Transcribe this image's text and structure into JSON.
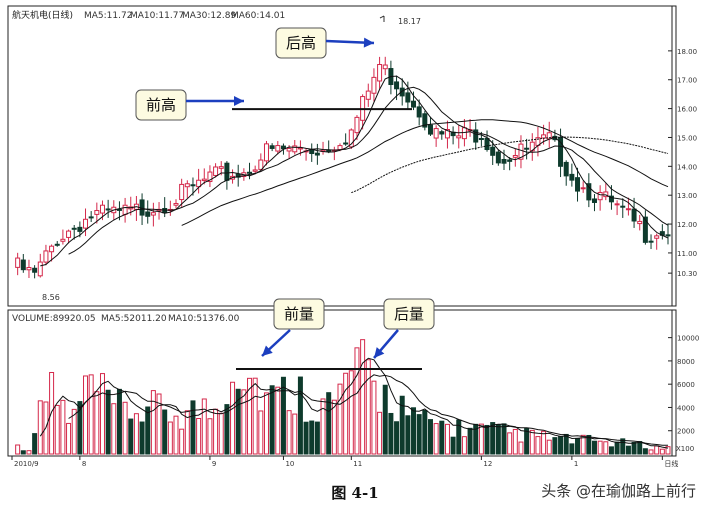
{
  "figure_caption": "图 4-1",
  "watermark": "头条 @在瑜伽路上前行",
  "chart_data": [
    {
      "type": "candlestick",
      "title_parts": {
        "name": "航天机电(日线)",
        "ma5": "MA5:11.72",
        "ma10": "MA10:11.77",
        "ma30": "MA30:12.89",
        "ma60": "MA60:14.01"
      },
      "y_ticks": [
        "18.00",
        "17.00",
        "16.00",
        "15.00",
        "14.00",
        "13.00",
        "12.00",
        "11.00",
        "10.30"
      ],
      "y_tick_values": [
        18,
        17,
        16,
        15,
        14,
        13,
        12,
        11,
        10.3
      ],
      "ylim": [
        9.3,
        19.0
      ],
      "high_label": "18.17",
      "low_label": "8.56",
      "colors": {
        "up": "#d4284a",
        "down": "#0e3b2d",
        "ma": "#111111",
        "annotation": "#1c3fbf",
        "callout_bg": "#fdfbe1"
      },
      "annotations": [
        {
          "label": "前高",
          "level": 15.98
        },
        {
          "label": "后高",
          "target_value": 18.1
        }
      ],
      "close_path_x": [
        0,
        4,
        8,
        14,
        21,
        28,
        35,
        41,
        45,
        50,
        55,
        60,
        63,
        65,
        68,
        72,
        75,
        78,
        83,
        86,
        89,
        95,
        100,
        105,
        109,
        112,
        115
      ],
      "close_path_y": [
        10.6,
        10.2,
        11.5,
        12.3,
        12.4,
        12.8,
        13.6,
        13.8,
        14.5,
        14.6,
        14.6,
        15.2,
        16.6,
        17.5,
        16.9,
        16.0,
        15.1,
        15.0,
        15.2,
        14.3,
        14.4,
        14.9,
        13.4,
        12.8,
        12.2,
        11.7,
        11.8
      ]
    },
    {
      "type": "bar",
      "title_parts": {
        "volume": "VOLUME:89920.05",
        "ma5": "MA5:52011.20",
        "ma10": "MA10:51376.00"
      },
      "y_ticks": [
        "10000",
        "8000",
        "6000",
        "4000",
        "2000"
      ],
      "y_tick_values": [
        10000,
        8000,
        6000,
        4000,
        2000
      ],
      "ylim": [
        0,
        11000
      ],
      "unit": "X100",
      "annotations": [
        {
          "label": "前量",
          "level": 7300
        },
        {
          "label": "后量",
          "level": 7300
        }
      ],
      "volume_path": [
        [
          0,
          700
        ],
        [
          3,
          400
        ],
        [
          7,
          6200
        ],
        [
          10,
          2500
        ],
        [
          14,
          5900
        ],
        [
          17,
          4200
        ],
        [
          20,
          3700
        ],
        [
          25,
          3800
        ],
        [
          30,
          3500
        ],
        [
          33,
          3700
        ],
        [
          36,
          3800
        ],
        [
          38,
          6500
        ],
        [
          40,
          8500
        ],
        [
          43,
          6000
        ],
        [
          46,
          4700
        ],
        [
          50,
          5500
        ],
        [
          53,
          4500
        ],
        [
          57,
          4200
        ],
        [
          60,
          7200
        ],
        [
          62,
          6900
        ],
        [
          65,
          5200
        ],
        [
          68,
          4700
        ],
        [
          71,
          2900
        ],
        [
          76,
          2500
        ],
        [
          80,
          2200
        ],
        [
          84,
          2000
        ],
        [
          88,
          1800
        ],
        [
          93,
          1500
        ],
        [
          98,
          1200
        ],
        [
          103,
          1100
        ],
        [
          108,
          900
        ],
        [
          112,
          700
        ],
        [
          115,
          500
        ]
      ]
    }
  ],
  "x_ticks": [
    "2010/9",
    "8",
    "9",
    "10",
    "11",
    "12",
    "1",
    "日线"
  ],
  "x_tick_positions": [
    0,
    12,
    35,
    48,
    60,
    83,
    99,
    115
  ]
}
